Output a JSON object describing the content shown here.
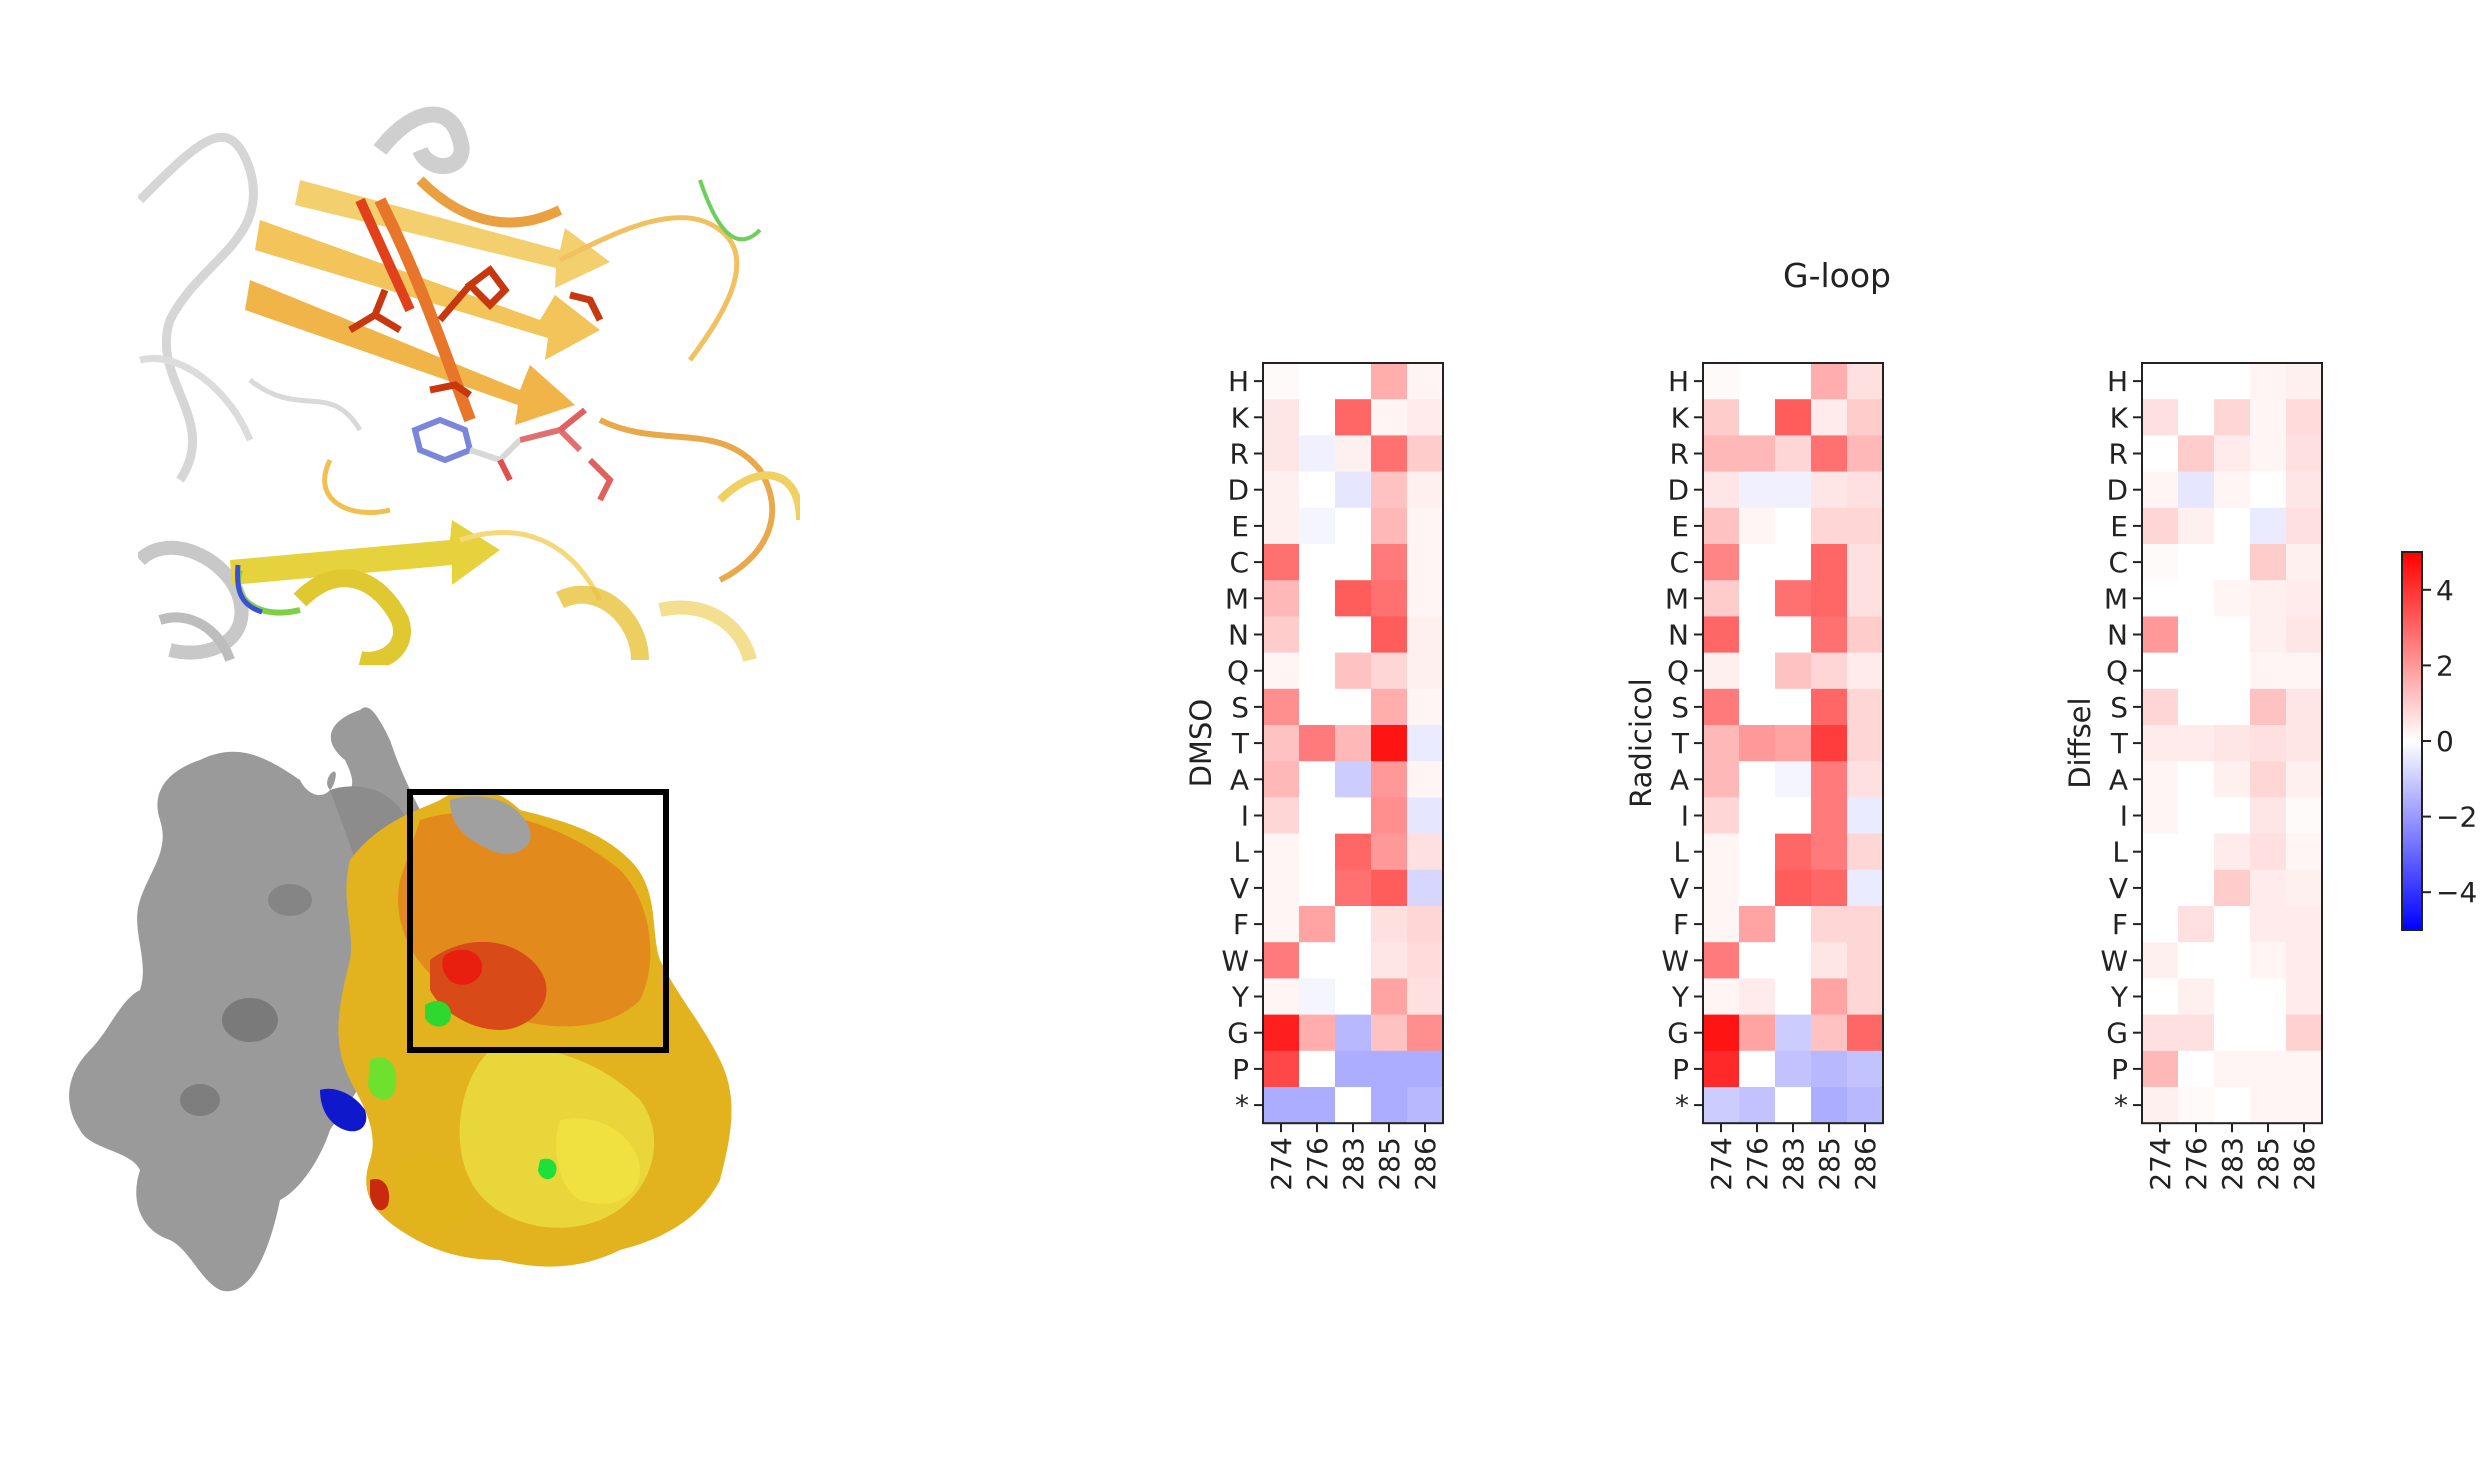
{
  "figure": {
    "title": "G-loop"
  },
  "colors": {
    "high": "#ff0000",
    "mid": "#ffffff",
    "low": "#0000ff",
    "protein_gray": "#9a9a9a",
    "structure_orange": "#e88a1a",
    "structure_yellow": "#e6d21e",
    "structure_red": "#e22a10",
    "structure_green": "#3ccc3c",
    "structure_blue": "#1a28d8"
  },
  "chart_data": [
    {
      "type": "heatmap",
      "ylabel": "DMSO",
      "columns": [
        "274",
        "276",
        "283",
        "285",
        "286"
      ],
      "rows": [
        "H",
        "K",
        "R",
        "D",
        "E",
        "C",
        "M",
        "N",
        "Q",
        "S",
        "T",
        "A",
        "I",
        "L",
        "V",
        "F",
        "W",
        "Y",
        "G",
        "P",
        "*"
      ],
      "values": [
        [
          0.1,
          0.0,
          0.0,
          1.6,
          0.2
        ],
        [
          0.5,
          0.0,
          3.0,
          0.2,
          0.4
        ],
        [
          0.5,
          -0.3,
          0.3,
          2.8,
          1.0
        ],
        [
          0.3,
          0.0,
          -0.5,
          1.2,
          0.3
        ],
        [
          0.3,
          -0.2,
          0.0,
          1.4,
          0.2
        ],
        [
          2.8,
          0.0,
          0.0,
          2.6,
          0.2
        ],
        [
          1.4,
          0.0,
          3.2,
          2.8,
          0.2
        ],
        [
          1.0,
          0.0,
          0.0,
          3.2,
          0.3
        ],
        [
          0.2,
          0.0,
          1.2,
          0.8,
          0.3
        ],
        [
          2.2,
          0.0,
          0.0,
          1.6,
          0.2
        ],
        [
          1.2,
          2.6,
          1.4,
          4.6,
          -0.4
        ],
        [
          1.4,
          0.0,
          -1.0,
          2.0,
          0.2
        ],
        [
          0.8,
          0.0,
          0.0,
          2.2,
          -0.5
        ],
        [
          0.2,
          0.0,
          3.0,
          2.0,
          0.6
        ],
        [
          0.2,
          0.0,
          2.8,
          3.2,
          -0.8
        ],
        [
          0.2,
          1.8,
          0.0,
          0.6,
          0.8
        ],
        [
          2.6,
          0.0,
          0.0,
          0.5,
          0.7
        ],
        [
          0.2,
          -0.2,
          0.0,
          1.8,
          0.6
        ],
        [
          4.4,
          1.6,
          -1.4,
          1.2,
          2.2
        ],
        [
          3.6,
          0.0,
          -1.6,
          -1.6,
          -1.6
        ],
        [
          -1.6,
          -1.6,
          0.0,
          -1.6,
          -1.4
        ]
      ],
      "vmin": -5,
      "vmax": 5
    },
    {
      "type": "heatmap",
      "ylabel": "Radicicol",
      "columns": [
        "274",
        "276",
        "283",
        "285",
        "286"
      ],
      "rows": [
        "H",
        "K",
        "R",
        "D",
        "E",
        "C",
        "M",
        "N",
        "Q",
        "S",
        "T",
        "A",
        "I",
        "L",
        "V",
        "F",
        "W",
        "Y",
        "G",
        "P",
        "*"
      ],
      "values": [
        [
          0.1,
          0.0,
          0.0,
          1.6,
          0.6
        ],
        [
          1.0,
          0.0,
          3.2,
          0.4,
          1.0
        ],
        [
          1.4,
          1.4,
          0.8,
          2.8,
          1.4
        ],
        [
          0.5,
          -0.3,
          -0.3,
          0.5,
          0.6
        ],
        [
          1.2,
          0.2,
          0.0,
          0.8,
          0.8
        ],
        [
          2.4,
          0.0,
          0.0,
          3.0,
          0.6
        ],
        [
          1.0,
          0.0,
          2.8,
          3.0,
          0.6
        ],
        [
          3.0,
          0.0,
          0.0,
          2.8,
          1.0
        ],
        [
          0.3,
          0.0,
          1.2,
          0.8,
          0.4
        ],
        [
          2.6,
          0.0,
          0.0,
          3.0,
          0.8
        ],
        [
          1.4,
          2.0,
          1.8,
          3.8,
          0.8
        ],
        [
          1.4,
          0.0,
          -0.2,
          2.6,
          0.6
        ],
        [
          0.8,
          0.0,
          0.0,
          2.6,
          -0.4
        ],
        [
          0.2,
          0.0,
          3.0,
          2.6,
          0.8
        ],
        [
          0.2,
          0.0,
          3.2,
          3.0,
          -0.4
        ],
        [
          0.2,
          1.8,
          0.0,
          0.8,
          0.8
        ],
        [
          2.6,
          0.0,
          0.0,
          0.5,
          0.8
        ],
        [
          0.2,
          0.4,
          0.0,
          1.8,
          0.8
        ],
        [
          4.6,
          1.8,
          -1.0,
          1.2,
          3.0
        ],
        [
          4.2,
          0.0,
          -1.2,
          -1.4,
          -1.2
        ],
        [
          -1.0,
          -1.2,
          0.0,
          -1.6,
          -1.4
        ]
      ],
      "vmin": -5,
      "vmax": 5
    },
    {
      "type": "heatmap",
      "ylabel": "Diffsel",
      "columns": [
        "274",
        "276",
        "283",
        "285",
        "286"
      ],
      "rows": [
        "H",
        "K",
        "R",
        "D",
        "E",
        "C",
        "M",
        "N",
        "Q",
        "S",
        "T",
        "A",
        "I",
        "L",
        "V",
        "F",
        "W",
        "Y",
        "G",
        "P",
        "*"
      ],
      "values": [
        [
          0.0,
          0.0,
          0.0,
          0.2,
          0.3
        ],
        [
          0.6,
          0.0,
          0.8,
          0.2,
          0.7
        ],
        [
          0.0,
          1.0,
          0.4,
          0.2,
          0.6
        ],
        [
          0.2,
          -0.5,
          0.2,
          0.0,
          0.5
        ],
        [
          0.8,
          0.3,
          0.0,
          -0.4,
          0.6
        ],
        [
          0.1,
          0.0,
          0.0,
          1.0,
          0.3
        ],
        [
          0.0,
          0.0,
          0.2,
          0.3,
          0.4
        ],
        [
          2.0,
          0.0,
          0.0,
          0.3,
          0.5
        ],
        [
          0.0,
          0.0,
          0.0,
          0.2,
          0.2
        ],
        [
          0.8,
          0.0,
          0.0,
          1.2,
          0.5
        ],
        [
          0.4,
          0.4,
          0.5,
          0.6,
          0.5
        ],
        [
          0.2,
          0.0,
          0.3,
          0.8,
          0.3
        ],
        [
          0.2,
          0.0,
          0.0,
          0.5,
          0.1
        ],
        [
          0.0,
          0.0,
          0.4,
          0.6,
          0.2
        ],
        [
          0.0,
          0.0,
          1.0,
          0.4,
          0.3
        ],
        [
          0.0,
          0.6,
          0.0,
          0.4,
          0.4
        ],
        [
          0.3,
          0.0,
          0.0,
          0.2,
          0.4
        ],
        [
          0.0,
          0.3,
          0.0,
          0.0,
          0.4
        ],
        [
          0.6,
          0.6,
          0.0,
          0.0,
          0.9
        ],
        [
          1.4,
          0.0,
          0.2,
          0.2,
          0.2
        ],
        [
          0.3,
          0.1,
          0.0,
          0.2,
          0.2
        ]
      ],
      "vmin": -5,
      "vmax": 5
    }
  ],
  "colorbar": {
    "ticks": [
      "4",
      "2",
      "0",
      "−2",
      "−4"
    ],
    "tick_values": [
      4,
      2,
      0,
      -2,
      -4
    ],
    "vmin": -5,
    "vmax": 5
  }
}
